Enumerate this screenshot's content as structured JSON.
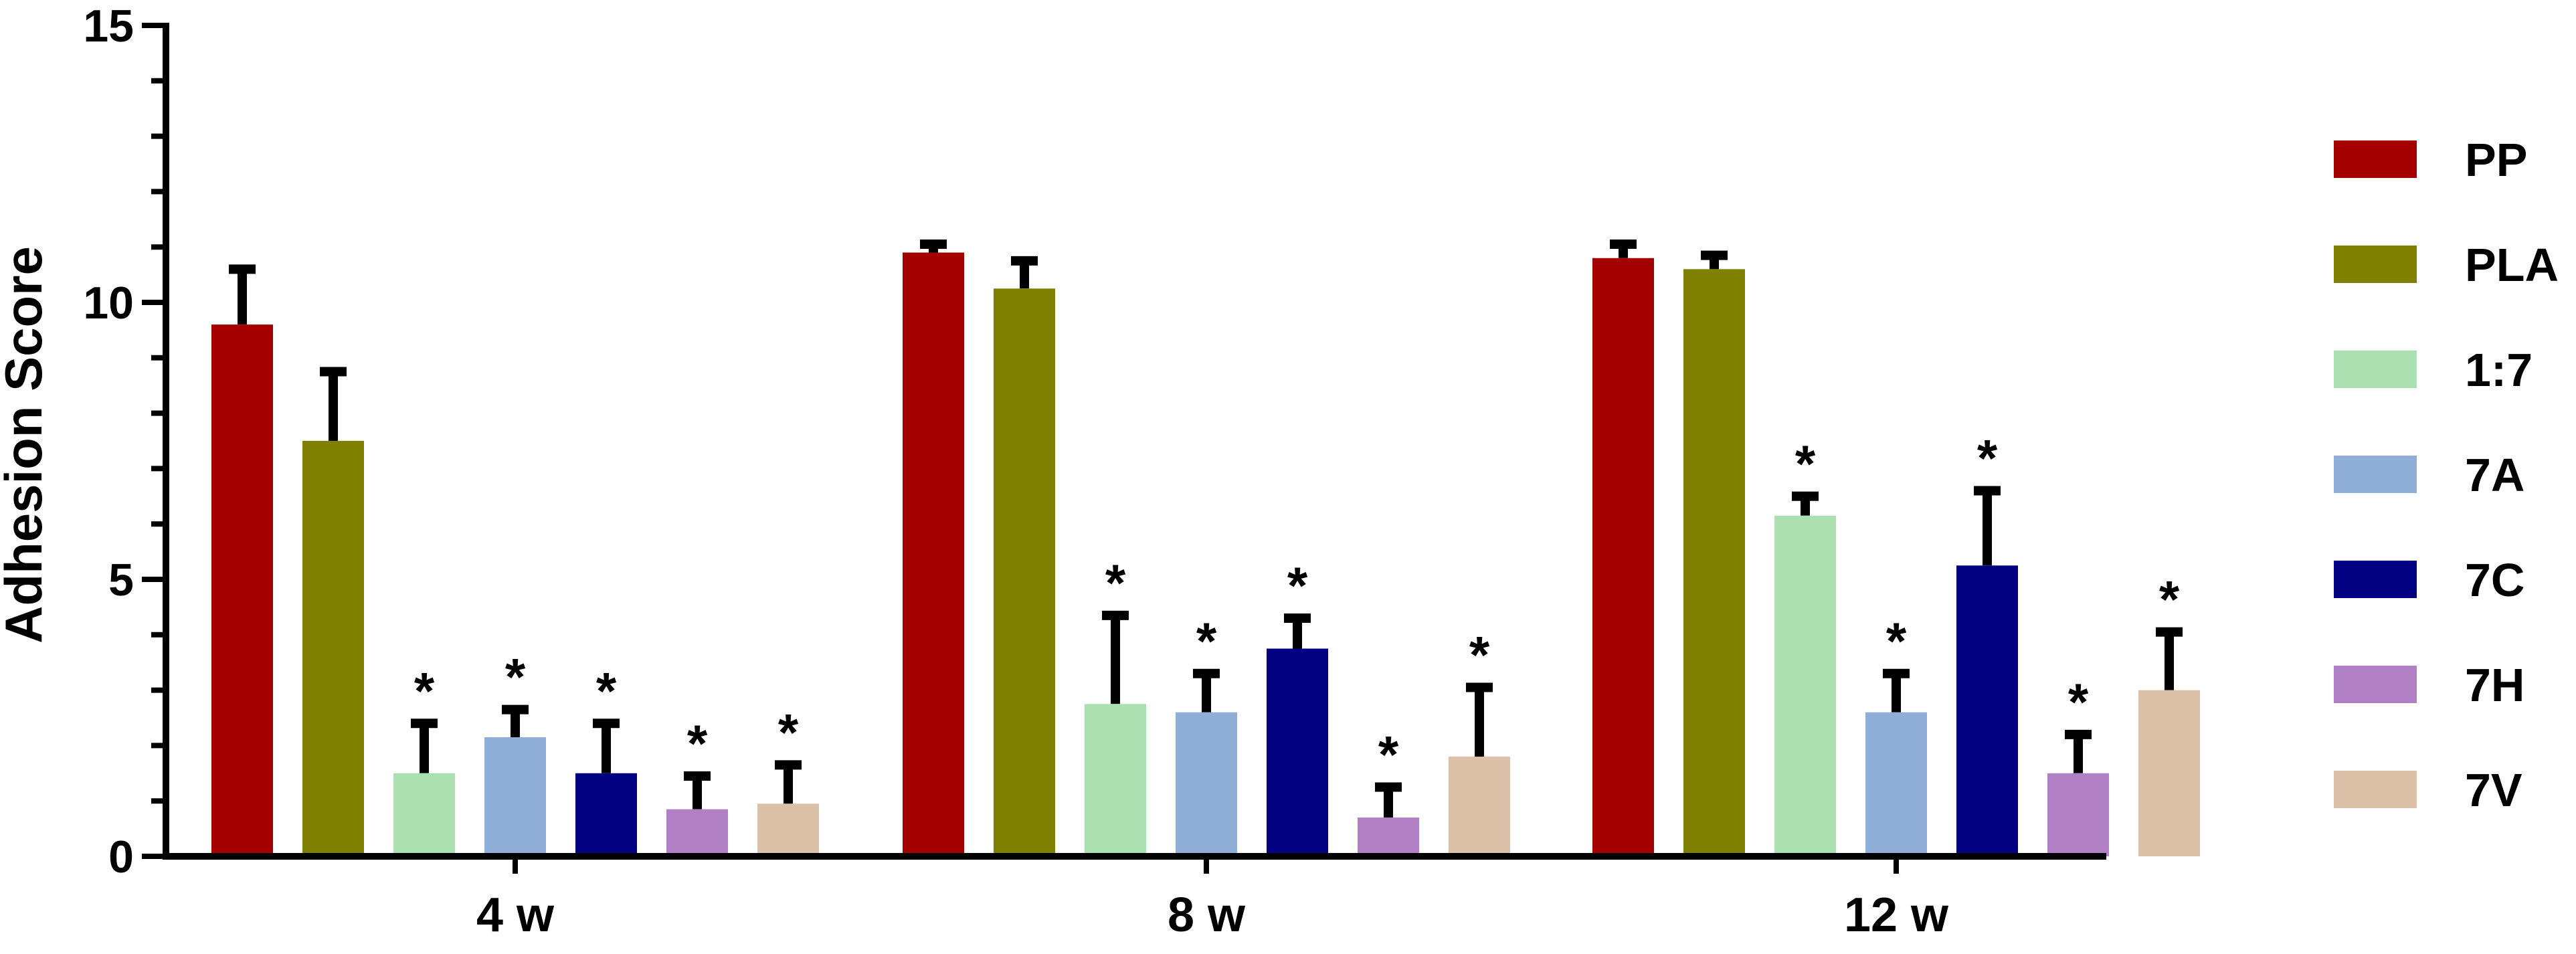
{
  "chart_data": {
    "type": "bar",
    "title": "",
    "xlabel": "",
    "ylabel": "Adhesion Score",
    "ylim": [
      0,
      15
    ],
    "yticks": [
      0,
      5,
      10,
      15
    ],
    "categories": [
      "4 w",
      "8 w",
      "12 w"
    ],
    "legend_position": "right",
    "grid": false,
    "series": [
      {
        "name": "PP",
        "color": "#a50000",
        "values": [
          9.6,
          10.9,
          10.8
        ],
        "errors": [
          1.0,
          0.15,
          0.25
        ],
        "significance": [
          "",
          "",
          ""
        ]
      },
      {
        "name": "PLA",
        "color": "#808000",
        "values": [
          7.5,
          10.25,
          10.6
        ],
        "errors": [
          1.25,
          0.5,
          0.25
        ],
        "significance": [
          "",
          "",
          ""
        ]
      },
      {
        "name": "1:7",
        "color": "#ade0b0",
        "values": [
          1.5,
          2.75,
          6.15
        ],
        "errors": [
          0.9,
          1.6,
          0.35
        ],
        "significance": [
          "*",
          "*",
          "*"
        ]
      },
      {
        "name": "7A",
        "color": "#8fafd8",
        "values": [
          2.15,
          2.6,
          2.6
        ],
        "errors": [
          0.5,
          0.7,
          0.7
        ],
        "significance": [
          "*",
          "*",
          "*"
        ]
      },
      {
        "name": "7C",
        "color": "#000080",
        "values": [
          1.5,
          3.75,
          5.25
        ],
        "errors": [
          0.9,
          0.55,
          1.35
        ],
        "significance": [
          "*",
          "*",
          "*"
        ]
      },
      {
        "name": "7H",
        "color": "#b07fc4",
        "values": [
          0.85,
          0.7,
          1.5
        ],
        "errors": [
          0.6,
          0.55,
          0.7
        ],
        "significance": [
          "*",
          "*",
          "*"
        ]
      },
      {
        "name": "7V",
        "color": "#dcc0a8",
        "values": [
          0.95,
          1.8,
          3.0
        ],
        "errors": [
          0.7,
          1.25,
          1.05
        ],
        "significance": [
          "*",
          "*",
          "*"
        ]
      }
    ]
  }
}
